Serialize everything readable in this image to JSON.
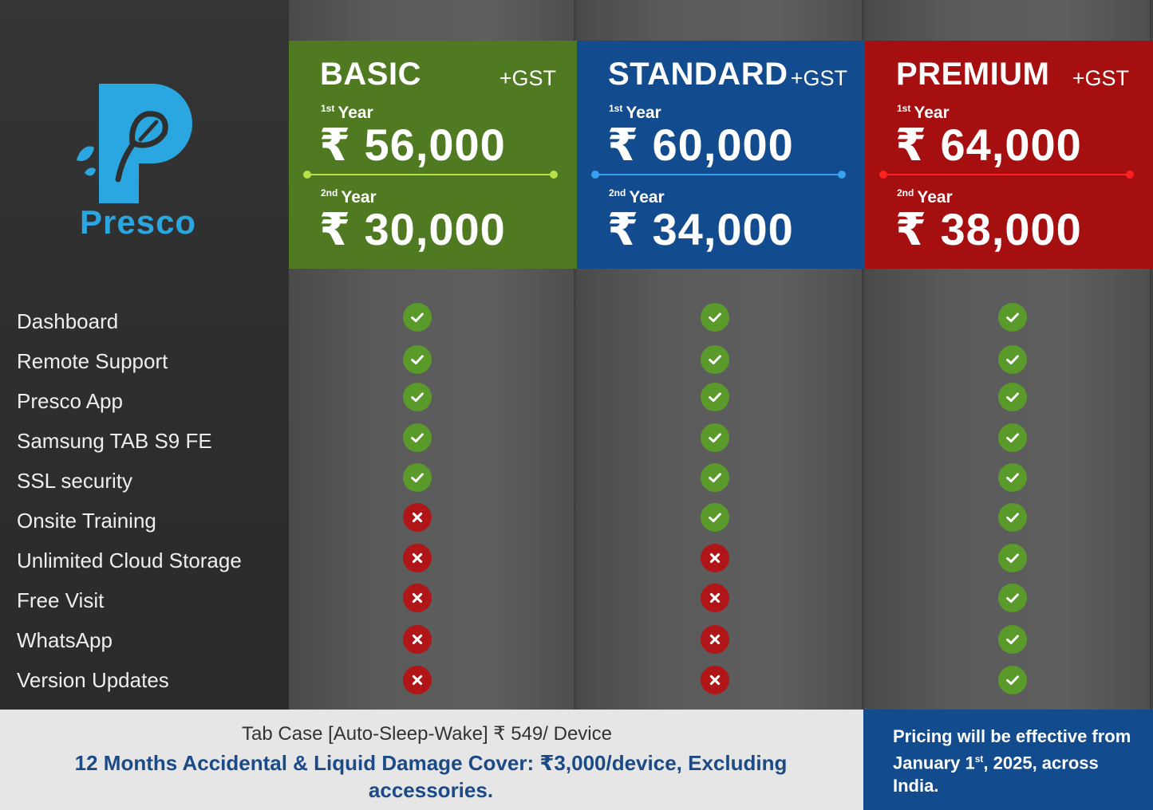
{
  "brand": {
    "name": "Presco"
  },
  "plans": [
    {
      "name": "BASIC",
      "gst": "+GST",
      "year1_label": "Year",
      "year1_sup": "1st",
      "year1_price": "₹ 56,000",
      "year2_label": "Year",
      "year2_sup": "2nd",
      "year2_price": "₹ 30,000",
      "color": "#4f7a22"
    },
    {
      "name": "STANDARD",
      "gst": "+GST",
      "year1_label": "Year",
      "year1_sup": "1st",
      "year1_price": "₹ 60,000",
      "year2_label": "Year",
      "year2_sup": "2nd",
      "year2_price": "₹ 34,000",
      "color": "#124c8e"
    },
    {
      "name": "PREMIUM",
      "gst": "+GST",
      "year1_label": "Year",
      "year1_sup": "1st",
      "year1_price": "₹ 64,000",
      "year2_label": "Year",
      "year2_sup": "2nd",
      "year2_price": "₹ 38,000",
      "color": "#a50f10"
    }
  ],
  "features": [
    {
      "name": "Dashboard",
      "basic": true,
      "standard": true,
      "premium": true
    },
    {
      "name": "Remote Support",
      "basic": true,
      "standard": true,
      "premium": true
    },
    {
      "name": "Presco App",
      "basic": true,
      "standard": true,
      "premium": true
    },
    {
      "name": "Samsung TAB S9 FE",
      "basic": true,
      "standard": true,
      "premium": true
    },
    {
      "name": "SSL security",
      "basic": true,
      "standard": true,
      "premium": true
    },
    {
      "name": "Onsite Training",
      "basic": false,
      "standard": true,
      "premium": true
    },
    {
      "name": "Unlimited Cloud Storage",
      "basic": false,
      "standard": false,
      "premium": true
    },
    {
      "name": "Free Visit",
      "basic": false,
      "standard": false,
      "premium": true
    },
    {
      "name": "WhatsApp",
      "basic": false,
      "standard": false,
      "premium": true
    },
    {
      "name": "Version Updates",
      "basic": false,
      "standard": false,
      "premium": true
    }
  ],
  "footer": {
    "tab_case": "Tab Case [Auto-Sleep-Wake] ₹ 549/ Device",
    "damage_cover": "12 Months Accidental & Liquid Damage Cover: ₹3,000/device, Excluding accessories.",
    "note_part1": "Pricing will be effective from January 1",
    "note_sup": "st",
    "note_part2": ", 2025, across India."
  },
  "icons": {
    "check": "check-icon",
    "cross": "cross-icon",
    "logo": "presco-leaf-logo-icon"
  }
}
